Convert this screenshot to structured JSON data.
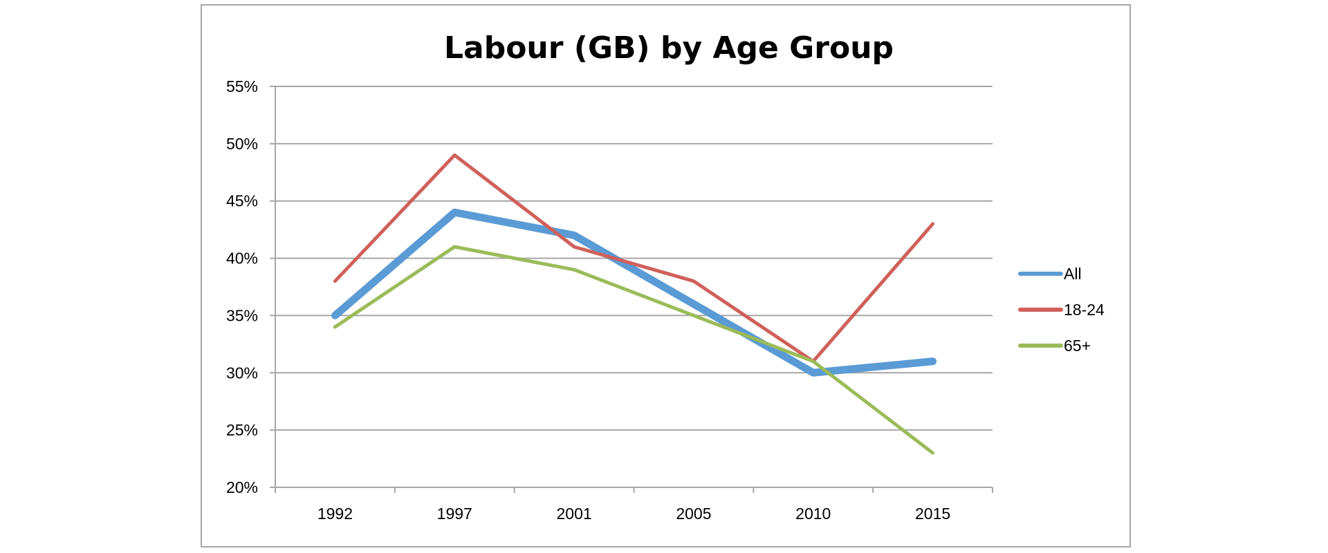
{
  "chart_data": {
    "type": "line",
    "title": "Labour (GB) by Age Group",
    "xlabel": "",
    "ylabel": "",
    "categories": [
      "1992",
      "1997",
      "2001",
      "2005",
      "2010",
      "2015"
    ],
    "y_ticks": [
      "20%",
      "25%",
      "30%",
      "35%",
      "40%",
      "45%",
      "50%",
      "55%"
    ],
    "ylim": [
      20,
      55
    ],
    "y_tick_step": 5,
    "y_unit": "%",
    "grid": true,
    "legend_position": "right",
    "series": [
      {
        "name": "All",
        "values": [
          35,
          44,
          42,
          36,
          30,
          31
        ],
        "color": "#5b9bd5",
        "emphasis": "thick"
      },
      {
        "name": "18-24",
        "values": [
          38,
          49,
          41,
          38,
          31,
          43
        ],
        "color": "#d0605a",
        "emphasis": "normal"
      },
      {
        "name": "65+",
        "values": [
          34,
          41,
          39,
          35,
          31,
          23
        ],
        "color": "#9bbb59",
        "emphasis": "normal"
      }
    ]
  }
}
